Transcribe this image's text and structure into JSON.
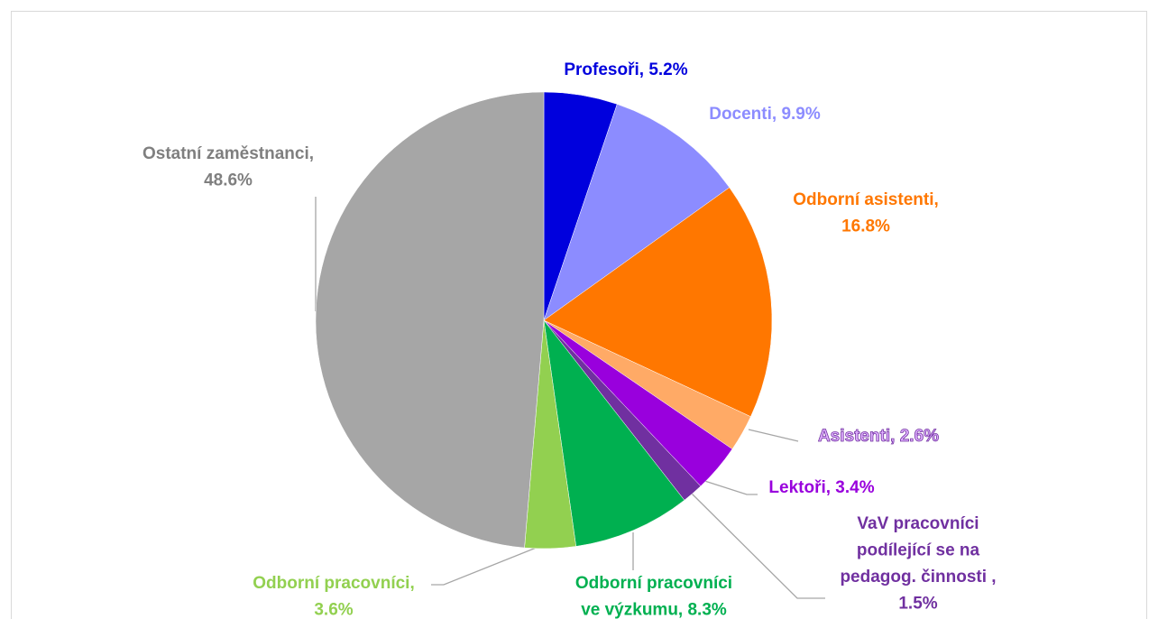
{
  "chart_data": {
    "type": "pie",
    "values": [
      5.2,
      9.9,
      16.8,
      2.6,
      3.4,
      1.5,
      8.3,
      3.6,
      48.6
    ],
    "value_labels": [
      [
        "Profesoři, 5.2%"
      ],
      [
        "Docenti, 9.9%"
      ],
      [
        "Odborní asistenti,",
        "16.8%"
      ],
      [
        "Asistenti, 2.6%"
      ],
      [
        "Lektoři, 3.4%"
      ],
      [
        "VaV pracovníci",
        "podílející se na",
        "pedagog. činnosti ,",
        "1.5%"
      ],
      [
        "Odborní pracovníci",
        "ve výzkumu, 8.3%"
      ],
      [
        "Odborní pracovníci,",
        "3.6%"
      ],
      [
        "Ostatní zaměstnanci,",
        "48.6%"
      ]
    ],
    "colors": [
      "#0000dd",
      "#8c8cff",
      "#ff7700",
      "#ffaa66",
      "#9900dd",
      "#7030a0",
      "#00b050",
      "#92d050",
      "#a6a6a6"
    ]
  }
}
